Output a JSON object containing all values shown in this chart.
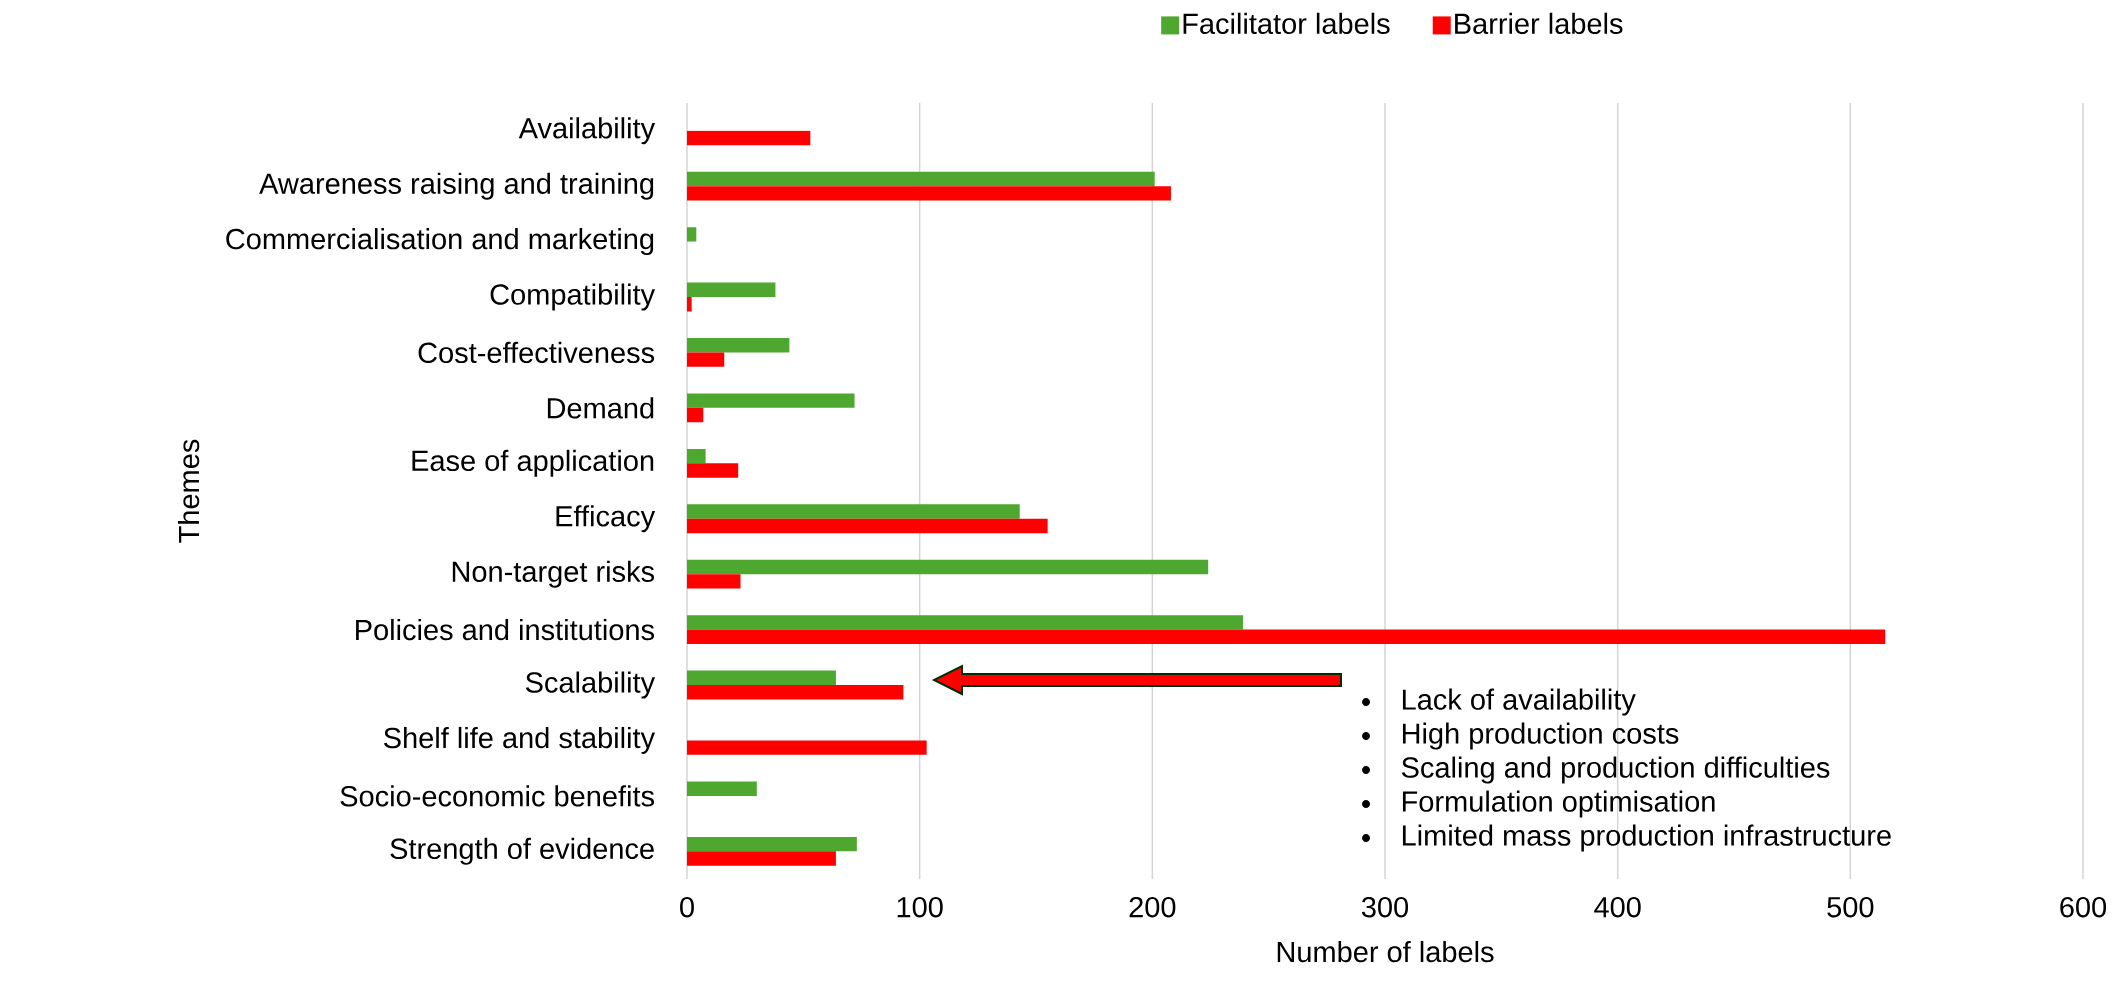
{
  "chart_data": {
    "type": "bar",
    "orientation": "horizontal",
    "xlabel": "Number of labels",
    "ylabel": "Themes",
    "categories": [
      "Availability",
      "Awareness raising and training",
      "Commercialisation and marketing",
      "Compatibility",
      "Cost-effectiveness",
      "Demand",
      "Ease of application",
      "Efficacy",
      "Non-target risks",
      "Policies and institutions",
      "Scalability",
      "Shelf life and stability",
      "Socio-economic benefits",
      "Strength of evidence"
    ],
    "series": [
      {
        "name": "Facilitator labels",
        "color": "#4ea72e",
        "values": [
          0,
          201,
          4,
          38,
          44,
          72,
          8,
          143,
          224,
          239,
          64,
          0,
          30,
          73
        ]
      },
      {
        "name": "Barrier labels",
        "color": "#ff0000",
        "values": [
          53,
          208,
          0,
          2,
          16,
          7,
          22,
          155,
          23,
          515,
          93,
          103,
          0,
          64
        ]
      }
    ],
    "xlim": [
      0,
      600
    ],
    "xticks": [
      0,
      100,
      200,
      300,
      400,
      500,
      600
    ],
    "grid": "x",
    "legend": "top",
    "annotations": [
      "Lack of availability",
      "High production costs",
      "Scaling and production difficulties",
      "Formulation optimisation",
      "Limited mass production infrastructure"
    ]
  }
}
